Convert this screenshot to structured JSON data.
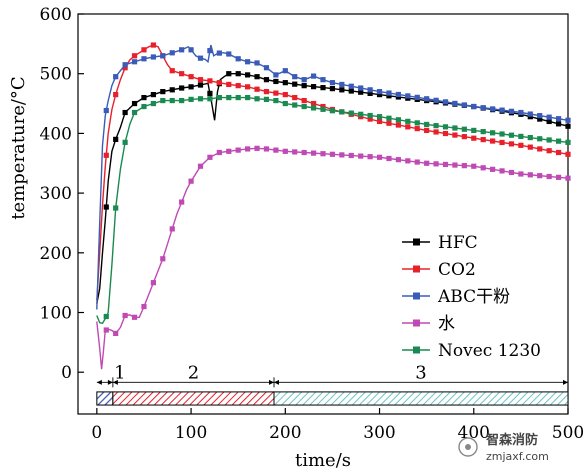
{
  "chart_data": {
    "type": "line",
    "title": "",
    "xlabel": "time/s",
    "ylabel": "temperature/°C",
    "xlim": [
      -20,
      500
    ],
    "ylim": [
      -70,
      600
    ],
    "xticks": [
      0,
      100,
      200,
      300,
      400,
      500
    ],
    "yticks": [
      0,
      100,
      200,
      300,
      400,
      500,
      600
    ],
    "legend_position": "bottom-right",
    "grid": false,
    "series": [
      {
        "name": "HFC",
        "color": "#000000",
        "x": [
          0,
          3,
          6,
          9,
          12,
          16,
          20,
          25,
          30,
          40,
          50,
          60,
          70,
          80,
          90,
          100,
          110,
          118,
          122,
          125,
          128,
          131,
          135,
          140,
          150,
          160,
          170,
          180,
          190,
          200,
          220,
          250,
          300,
          350,
          400,
          450,
          500
        ],
        "y": [
          115,
          140,
          200,
          255,
          320,
          370,
          390,
          410,
          435,
          450,
          460,
          465,
          470,
          473,
          476,
          478,
          481,
          484,
          450,
          422,
          470,
          490,
          495,
          500,
          500,
          498,
          495,
          490,
          487,
          485,
          480,
          475,
          465,
          455,
          445,
          432,
          412
        ]
      },
      {
        "name": "CO2",
        "color": "#e8202a",
        "x": [
          0,
          3,
          6,
          9,
          12,
          16,
          20,
          25,
          30,
          35,
          40,
          45,
          50,
          55,
          60,
          65,
          70,
          75,
          80,
          90,
          100,
          110,
          120,
          140,
          160,
          180,
          200,
          220,
          250,
          300,
          350,
          400,
          450,
          500
        ],
        "y": [
          120,
          200,
          280,
          345,
          400,
          440,
          465,
          490,
          510,
          523,
          530,
          535,
          540,
          545,
          548,
          545,
          530,
          515,
          505,
          500,
          495,
          490,
          488,
          482,
          478,
          470,
          465,
          455,
          440,
          420,
          405,
          392,
          380,
          365
        ]
      },
      {
        "name": "ABC干粉",
        "color": "#3a5cb8",
        "x": [
          0,
          3,
          6,
          9,
          12,
          16,
          20,
          25,
          30,
          40,
          50,
          60,
          70,
          80,
          90,
          97,
          100,
          105,
          110,
          115,
          118,
          121,
          124,
          128,
          132,
          135,
          140,
          150,
          160,
          170,
          180,
          190,
          200,
          210,
          220,
          230,
          240,
          250,
          300,
          350,
          400,
          450,
          500
        ],
        "y": [
          105,
          250,
          380,
          430,
          455,
          480,
          495,
          505,
          515,
          520,
          525,
          528,
          530,
          535,
          540,
          545,
          540,
          530,
          526,
          524,
          520,
          548,
          530,
          534,
          535,
          535,
          533,
          525,
          520,
          518,
          510,
          498,
          505,
          495,
          490,
          496,
          490,
          485,
          470,
          458,
          445,
          435,
          422
        ]
      },
      {
        "name": "水",
        "color": "#c04ab4",
        "x": [
          0,
          3,
          5,
          7,
          9,
          12,
          16,
          20,
          25,
          30,
          35,
          40,
          45,
          50,
          55,
          60,
          65,
          70,
          75,
          80,
          85,
          90,
          95,
          100,
          110,
          120,
          130,
          140,
          150,
          160,
          170,
          180,
          190,
          200,
          220,
          250,
          300,
          350,
          400,
          450,
          500
        ],
        "y": [
          85,
          40,
          5,
          35,
          70,
          72,
          70,
          65,
          75,
          95,
          96,
          92,
          92,
          110,
          130,
          150,
          170,
          190,
          215,
          240,
          265,
          285,
          305,
          320,
          345,
          360,
          368,
          370,
          372,
          374,
          375,
          374,
          372,
          370,
          368,
          365,
          360,
          350,
          345,
          332,
          325
        ]
      },
      {
        "name": "Novec 1230",
        "color": "#1a8a50",
        "x": [
          0,
          3,
          6,
          9,
          12,
          16,
          20,
          25,
          30,
          35,
          40,
          50,
          60,
          70,
          80,
          90,
          100,
          110,
          120,
          130,
          140,
          150,
          160,
          170,
          180,
          190,
          200,
          220,
          250,
          300,
          350,
          400,
          450,
          500
        ],
        "y": [
          95,
          83,
          82,
          90,
          100,
          180,
          275,
          340,
          385,
          415,
          435,
          445,
          450,
          455,
          455,
          455,
          457,
          458,
          458,
          460,
          460,
          460,
          460,
          458,
          457,
          455,
          450,
          445,
          438,
          428,
          415,
          405,
          395,
          385
        ]
      }
    ],
    "phases": [
      {
        "label": "1",
        "x_start": 0,
        "x_end": 17,
        "fill": "#3a5cb8",
        "pattern": "hatch"
      },
      {
        "label": "2",
        "x_start": 17,
        "x_end": 188,
        "fill": "#e8202a",
        "pattern": "hatch"
      },
      {
        "label": "3",
        "x_start": 188,
        "x_end": 500,
        "fill": "#6ac4c4",
        "pattern": "hatch"
      }
    ]
  },
  "watermark": {
    "line1": "智森消防",
    "line2": "zmjaxf.com"
  }
}
